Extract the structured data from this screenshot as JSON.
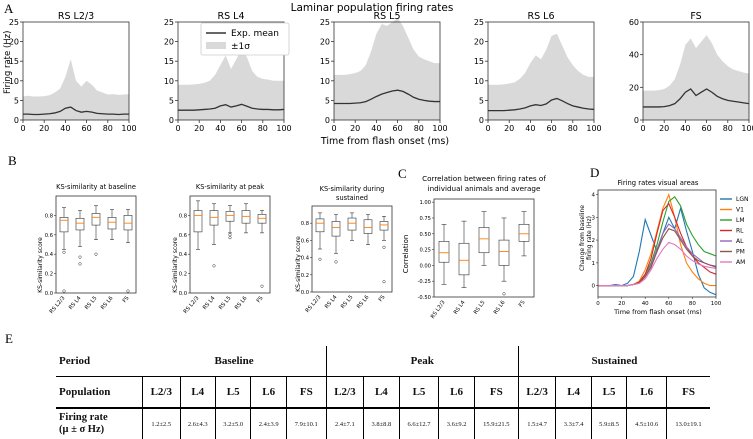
{
  "panel_labels": {
    "A": "A",
    "B": "B",
    "C": "C",
    "D": "D",
    "E": "E"
  },
  "panel_a": {
    "title": "Laminar population firing rates",
    "xlabel": "Time from flash onset (ms)",
    "ylabel": "Firing rate (Hz)",
    "legend": {
      "mean": "Exp. mean",
      "band": "±1σ"
    }
  },
  "panel_b": {
    "ylabel": "KS-similarity score"
  },
  "panel_c": {
    "title_line1": "Correlation between firing rates of",
    "title_line2": "individual animals and average",
    "ylabel": "Correlation"
  },
  "panel_d": {
    "title": "Firing rates visual areas",
    "ylabel_line1": "Change from baseline",
    "ylabel_line2": "firing rate (Hz)",
    "xlabel": "Time from flash onset (ms)"
  },
  "colors": {
    "band": "#d9d9d9",
    "mean": "#333333",
    "median": "#ff7f0e"
  },
  "chart_data": [
    {
      "type": "area",
      "panel": "A",
      "title": "RS L2/3",
      "x": [
        0,
        5,
        10,
        15,
        20,
        25,
        30,
        35,
        40,
        45,
        50,
        55,
        60,
        65,
        70,
        75,
        80,
        85,
        90,
        95,
        100
      ],
      "mean": [
        1.5,
        1.5,
        1.4,
        1.4,
        1.5,
        1.6,
        1.8,
        2.2,
        3.0,
        3.3,
        2.4,
        2.0,
        2.2,
        2.0,
        1.7,
        1.6,
        1.5,
        1.5,
        1.4,
        1.5,
        1.5
      ],
      "upper": [
        6,
        6.2,
        6,
        6,
        6.1,
        6.3,
        7,
        8,
        11,
        15.5,
        10,
        8.5,
        10,
        9,
        7.5,
        7,
        6.5,
        6.6,
        6.4,
        6.5,
        6.6
      ],
      "lower": [
        0,
        0,
        0,
        0,
        0,
        0,
        0,
        0,
        0,
        0,
        0,
        0,
        0,
        0,
        0,
        0,
        0,
        0,
        0,
        0,
        0
      ],
      "ylim": [
        0,
        25
      ],
      "yticks": [
        0,
        5,
        10,
        15,
        20,
        25
      ],
      "xticks": [
        0,
        20,
        40,
        60,
        80,
        100
      ]
    },
    {
      "type": "area",
      "panel": "A",
      "title": "RS L4",
      "x": [
        0,
        5,
        10,
        15,
        20,
        25,
        30,
        35,
        40,
        45,
        50,
        55,
        60,
        65,
        70,
        75,
        80,
        85,
        90,
        95,
        100
      ],
      "mean": [
        2.5,
        2.5,
        2.5,
        2.5,
        2.6,
        2.7,
        2.8,
        3.0,
        3.6,
        3.9,
        3.3,
        3.6,
        4.0,
        3.5,
        3.0,
        2.8,
        2.7,
        2.7,
        2.6,
        2.6,
        2.7
      ],
      "upper": [
        9,
        9,
        9,
        9.1,
        9.2,
        9.5,
        10,
        11.5,
        14,
        16.5,
        13,
        15.5,
        18,
        16,
        12.5,
        11,
        10.5,
        10.3,
        10,
        10,
        10
      ],
      "lower": [
        0,
        0,
        0,
        0,
        0,
        0,
        0,
        0,
        0,
        0,
        0,
        0,
        0,
        0,
        0,
        0,
        0,
        0,
        0,
        0,
        0
      ],
      "ylim": [
        0,
        25
      ],
      "yticks": [
        0,
        5,
        10,
        15,
        20,
        25
      ],
      "xticks": [
        0,
        20,
        40,
        60,
        80,
        100
      ]
    },
    {
      "type": "area",
      "panel": "A",
      "title": "RS L5",
      "x": [
        0,
        5,
        10,
        15,
        20,
        25,
        30,
        35,
        40,
        45,
        50,
        55,
        60,
        65,
        70,
        75,
        80,
        85,
        90,
        95,
        100
      ],
      "mean": [
        4.2,
        4.2,
        4.2,
        4.2,
        4.3,
        4.4,
        4.7,
        5.3,
        6.0,
        6.6,
        7.0,
        7.4,
        7.6,
        7.3,
        6.6,
        5.8,
        5.3,
        5.0,
        4.8,
        4.7,
        4.7
      ],
      "upper": [
        11.5,
        11.5,
        11.5,
        11.7,
        12,
        12.5,
        14,
        17.5,
        22,
        24.5,
        24,
        25,
        26,
        24,
        21,
        18,
        16.2,
        15.5,
        15,
        14.5,
        14.5
      ],
      "lower": [
        0,
        0,
        0,
        0,
        0,
        0,
        0,
        0,
        0,
        0,
        0,
        0,
        0,
        0,
        0,
        0,
        0,
        0,
        0,
        0,
        0
      ],
      "ylim": [
        0,
        25
      ],
      "yticks": [
        0,
        5,
        10,
        15,
        20,
        25
      ],
      "xticks": [
        0,
        20,
        40,
        60,
        80,
        100
      ]
    },
    {
      "type": "area",
      "panel": "A",
      "title": "RS L6",
      "x": [
        0,
        5,
        10,
        15,
        20,
        25,
        30,
        35,
        40,
        45,
        50,
        55,
        60,
        65,
        70,
        75,
        80,
        85,
        90,
        95,
        100
      ],
      "mean": [
        2.4,
        2.4,
        2.4,
        2.4,
        2.5,
        2.6,
        2.8,
        3.1,
        3.6,
        3.9,
        3.7,
        4.1,
        5.1,
        5.5,
        4.9,
        4.2,
        3.6,
        3.3,
        3.0,
        2.8,
        2.7
      ],
      "upper": [
        9,
        9,
        9,
        9.1,
        9.3,
        9.6,
        10.5,
        12,
        14.5,
        16.5,
        15.5,
        18,
        21.5,
        22,
        19,
        16,
        14,
        12.5,
        11.5,
        11,
        11
      ],
      "lower": [
        0,
        0,
        0,
        0,
        0,
        0,
        0,
        0,
        0,
        0,
        0,
        0,
        0,
        0,
        0,
        0,
        0,
        0,
        0,
        0,
        0
      ],
      "ylim": [
        0,
        25
      ],
      "yticks": [
        0,
        5,
        10,
        15,
        20,
        25
      ],
      "xticks": [
        0,
        20,
        40,
        60,
        80,
        100
      ]
    },
    {
      "type": "area",
      "panel": "A",
      "title": "FS",
      "x": [
        0,
        5,
        10,
        15,
        20,
        25,
        30,
        35,
        40,
        45,
        50,
        55,
        60,
        65,
        70,
        75,
        80,
        85,
        90,
        95,
        100
      ],
      "mean": [
        8,
        8,
        8,
        8,
        8.2,
        8.8,
        10,
        13,
        17,
        19,
        15,
        17,
        19,
        17,
        14.5,
        13,
        12,
        11.5,
        11,
        10.5,
        10
      ],
      "upper": [
        18,
        18,
        18,
        18.3,
        19,
        21,
        25,
        34,
        46,
        50,
        44,
        48,
        52,
        47,
        40,
        36,
        33,
        31,
        30,
        29,
        28.5
      ],
      "lower": [
        0,
        0,
        0,
        0,
        0,
        0,
        0,
        0,
        0,
        0,
        0,
        0,
        0,
        0,
        0,
        0,
        0,
        0,
        0,
        0,
        0
      ],
      "ylim": [
        0,
        60
      ],
      "yticks": [
        0,
        20,
        40,
        60
      ],
      "xticks": [
        0,
        20,
        40,
        60,
        80,
        100
      ]
    },
    {
      "type": "box",
      "panel": "B",
      "title": "KS-similarity at baseline",
      "categories": [
        "RS L2/3",
        "RS L4",
        "RS L5",
        "RS L6",
        "FS"
      ],
      "boxes": [
        {
          "whislo": 0.45,
          "q1": 0.63,
          "med": 0.75,
          "q3": 0.78,
          "whishi": 0.88,
          "fliers": [
            0.42,
            0.02
          ]
        },
        {
          "whislo": 0.48,
          "q1": 0.65,
          "med": 0.72,
          "q3": 0.77,
          "whishi": 0.85,
          "fliers": [
            0.37,
            0.3
          ]
        },
        {
          "whislo": 0.55,
          "q1": 0.7,
          "med": 0.78,
          "q3": 0.82,
          "whishi": 0.9,
          "fliers": [
            0.4
          ]
        },
        {
          "whislo": 0.55,
          "q1": 0.66,
          "med": 0.73,
          "q3": 0.78,
          "whishi": 0.86,
          "fliers": []
        },
        {
          "whislo": 0.52,
          "q1": 0.65,
          "med": 0.72,
          "q3": 0.8,
          "whishi": 0.86,
          "fliers": [
            0.02
          ]
        }
      ],
      "ylim": [
        0,
        1
      ],
      "yticks": [
        0.0,
        0.2,
        0.4,
        0.6,
        0.8
      ]
    },
    {
      "type": "box",
      "panel": "B",
      "title": "KS-similarity at peak",
      "categories": [
        "RS L2/3",
        "RS L4",
        "RS L5",
        "RS L6",
        "FS"
      ],
      "boxes": [
        {
          "whislo": 0.45,
          "q1": 0.63,
          "med": 0.8,
          "q3": 0.85,
          "whishi": 0.95,
          "fliers": []
        },
        {
          "whislo": 0.5,
          "q1": 0.7,
          "med": 0.78,
          "q3": 0.85,
          "whishi": 0.92,
          "fliers": [
            0.28
          ]
        },
        {
          "whislo": 0.62,
          "q1": 0.74,
          "med": 0.8,
          "q3": 0.84,
          "whishi": 0.9,
          "fliers": [
            0.6,
            0.57
          ]
        },
        {
          "whislo": 0.62,
          "q1": 0.72,
          "med": 0.79,
          "q3": 0.85,
          "whishi": 0.92,
          "fliers": []
        },
        {
          "whislo": 0.62,
          "q1": 0.72,
          "med": 0.77,
          "q3": 0.81,
          "whishi": 0.85,
          "fliers": [
            0.07
          ]
        }
      ],
      "ylim": [
        0,
        1
      ],
      "yticks": [
        0.0,
        0.2,
        0.4,
        0.6,
        0.8
      ]
    },
    {
      "type": "box",
      "panel": "B",
      "title_line1": "KS-similarity during",
      "title_line2": "sustained",
      "categories": [
        "RS L2/3",
        "RS L4",
        "RS L5",
        "RS L6",
        "FS"
      ],
      "boxes": [
        {
          "whislo": 0.5,
          "q1": 0.7,
          "med": 0.8,
          "q3": 0.85,
          "whishi": 0.92,
          "fliers": [
            0.38
          ]
        },
        {
          "whislo": 0.45,
          "q1": 0.65,
          "med": 0.75,
          "q3": 0.82,
          "whishi": 0.9,
          "fliers": [
            0.35
          ]
        },
        {
          "whislo": 0.6,
          "q1": 0.72,
          "med": 0.8,
          "q3": 0.86,
          "whishi": 0.92,
          "fliers": []
        },
        {
          "whislo": 0.55,
          "q1": 0.68,
          "med": 0.75,
          "q3": 0.84,
          "whishi": 0.9,
          "fliers": []
        },
        {
          "whislo": 0.6,
          "q1": 0.72,
          "med": 0.78,
          "q3": 0.82,
          "whishi": 0.88,
          "fliers": [
            0.52,
            0.12
          ]
        }
      ],
      "ylim": [
        0,
        1
      ],
      "yticks": [
        0.0,
        0.2,
        0.4,
        0.6,
        0.8
      ]
    },
    {
      "type": "box",
      "panel": "C",
      "categories": [
        "RS L2/3",
        "RS L4",
        "RS L5",
        "RS L6",
        "FS"
      ],
      "boxes": [
        {
          "whislo": -0.3,
          "q1": 0.05,
          "med": 0.2,
          "q3": 0.38,
          "whishi": 0.65,
          "fliers": []
        },
        {
          "whislo": -0.35,
          "q1": -0.15,
          "med": 0.08,
          "q3": 0.35,
          "whishi": 0.7,
          "fliers": []
        },
        {
          "whislo": 0.0,
          "q1": 0.2,
          "med": 0.42,
          "q3": 0.6,
          "whishi": 0.85,
          "fliers": []
        },
        {
          "whislo": -0.25,
          "q1": 0.0,
          "med": 0.22,
          "q3": 0.4,
          "whishi": 0.75,
          "fliers": [
            -0.45
          ]
        },
        {
          "whislo": 0.15,
          "q1": 0.38,
          "med": 0.5,
          "q3": 0.65,
          "whishi": 0.85,
          "fliers": []
        }
      ],
      "ylim": [
        -0.5,
        1.05
      ],
      "yticks": [
        -0.5,
        -0.25,
        0.0,
        0.25,
        0.5,
        0.75,
        1.0
      ]
    },
    {
      "type": "line",
      "panel": "D",
      "x": [
        0,
        5,
        10,
        15,
        20,
        25,
        30,
        35,
        40,
        45,
        50,
        55,
        60,
        65,
        70,
        75,
        80,
        85,
        90,
        95,
        100
      ],
      "series": [
        {
          "name": "LGN",
          "color": "#1f77b4",
          "values": [
            0,
            0,
            0,
            0.05,
            0,
            0.1,
            0.4,
            1.5,
            2.9,
            2.2,
            1.5,
            2.3,
            3.0,
            2.5,
            3.4,
            2.4,
            1.5,
            0.5,
            -0.1,
            -0.3,
            -0.4
          ]
        },
        {
          "name": "V1",
          "color": "#ff7f0e",
          "values": [
            0,
            0,
            0,
            0,
            0,
            0,
            0.05,
            0.2,
            0.7,
            1.4,
            2.4,
            3.4,
            4.0,
            3.0,
            1.8,
            1.0,
            0.6,
            0.3,
            0.1,
            0,
            0
          ]
        },
        {
          "name": "LM",
          "color": "#2ca02c",
          "values": [
            0,
            0,
            0,
            0,
            0,
            0,
            0.05,
            0.15,
            0.5,
            1.0,
            1.8,
            2.8,
            3.7,
            3.9,
            3.5,
            2.7,
            2.2,
            1.8,
            1.5,
            1.4,
            1.3
          ]
        },
        {
          "name": "RL",
          "color": "#d62728",
          "values": [
            0,
            0,
            0,
            0,
            0,
            0,
            0.05,
            0.15,
            0.5,
            1.2,
            2.3,
            3.3,
            3.6,
            3.0,
            2.3,
            1.7,
            1.3,
            1.0,
            0.8,
            0.6,
            0.5
          ]
        },
        {
          "name": "AL",
          "color": "#9467bd",
          "values": [
            0,
            0,
            0,
            0,
            0,
            0,
            0.05,
            0.1,
            0.4,
            0.9,
            1.6,
            2.3,
            2.7,
            2.5,
            2.1,
            1.7,
            1.4,
            1.2,
            1.0,
            0.9,
            0.8
          ]
        },
        {
          "name": "PM",
          "color": "#8c564b",
          "values": [
            0,
            0,
            0,
            0,
            0,
            0,
            0.05,
            0.1,
            0.4,
            0.8,
            1.5,
            2.1,
            2.5,
            2.4,
            2.0,
            1.6,
            1.3,
            1.1,
            1.0,
            0.9,
            0.85
          ]
        },
        {
          "name": "AM",
          "color": "#e377c2",
          "values": [
            0,
            0,
            0,
            0,
            0,
            0,
            0.05,
            0.1,
            0.3,
            0.7,
            1.2,
            1.6,
            1.9,
            1.8,
            1.6,
            1.3,
            1.1,
            0.95,
            0.85,
            0.8,
            0.75
          ]
        }
      ],
      "ylim": [
        -0.5,
        4.2
      ],
      "yticks": [
        0,
        1,
        2,
        3,
        4
      ],
      "xticks": [
        0,
        20,
        40,
        60,
        80,
        100
      ]
    },
    {
      "type": "table",
      "panel": "E",
      "period_label": "Period",
      "periods": [
        "Baseline",
        "Peak",
        "Sustained"
      ],
      "population_label": "Population",
      "populations": [
        "L2/3",
        "L4",
        "L5",
        "L6",
        "FS"
      ],
      "rate_label_line1": "Firing rate",
      "rate_label_line2": "(μ ± σ Hz)",
      "values": [
        "1.2±2.5",
        "2.6±4.3",
        "3.2±5.0",
        "2.4±3.9",
        "7.9±10.1",
        "2.4±7.1",
        "3.8±8.8",
        "6.6±12.7",
        "3.6±9.2",
        "15.9±21.5",
        "1.5±4.7",
        "3.3±7.4",
        "5.9±8.5",
        "4.5±10.6",
        "13.0±19.1"
      ]
    }
  ]
}
